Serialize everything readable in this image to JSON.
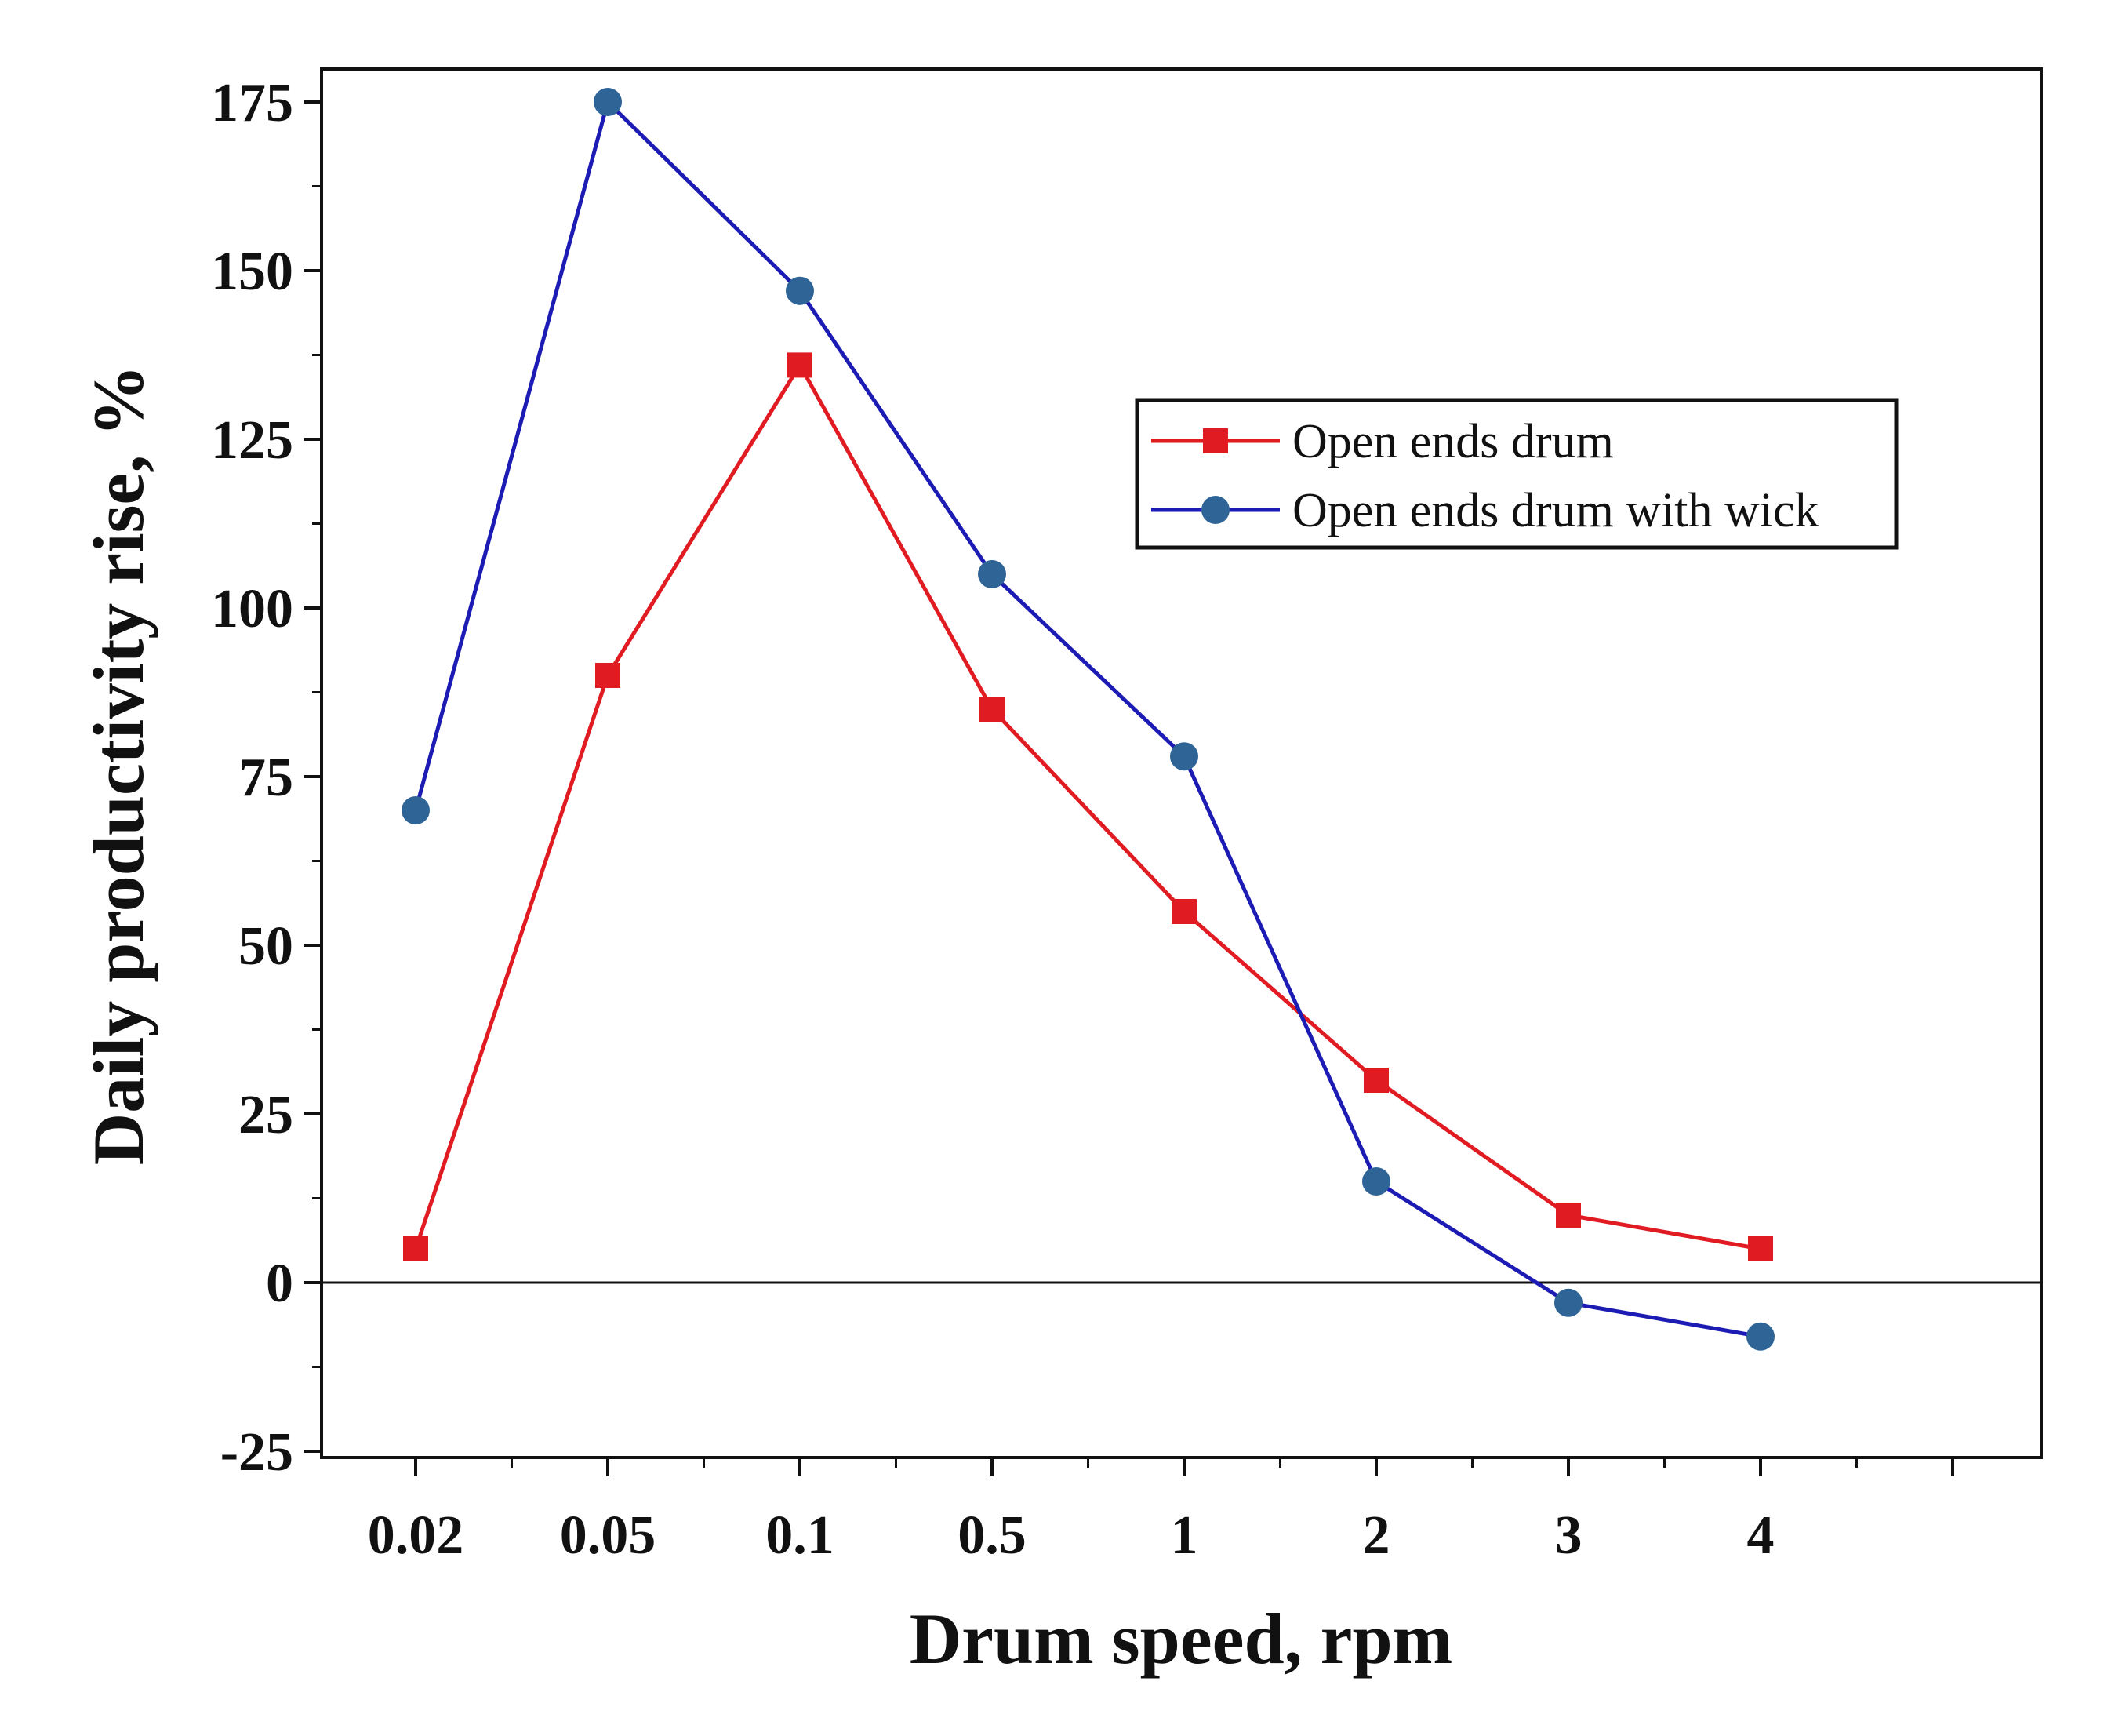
{
  "chart_data": {
    "type": "line",
    "title": "",
    "xlabel": "Drum speed, rpm",
    "ylabel": "Daily productivity rise, %",
    "categories": [
      "0.02",
      "0.05",
      "0.1",
      "0.5",
      "1",
      "2",
      "3",
      "4"
    ],
    "ylim": [
      -25,
      180
    ],
    "yticks": [
      -25,
      0,
      25,
      50,
      75,
      100,
      125,
      150,
      175
    ],
    "reference_line_y": 0,
    "grid": false,
    "legend_position": "upper-right",
    "series": [
      {
        "name": "Open ends drum",
        "color": "#e11b22",
        "marker": "square",
        "values": [
          5,
          90,
          136,
          85,
          55,
          30,
          10,
          5
        ]
      },
      {
        "name": "Open ends drum with wick",
        "color": "#1c1cb4",
        "marker_color": "#2f6496",
        "marker": "circle",
        "values": [
          70,
          175,
          147,
          105,
          78,
          15,
          -3,
          -8
        ]
      }
    ]
  }
}
